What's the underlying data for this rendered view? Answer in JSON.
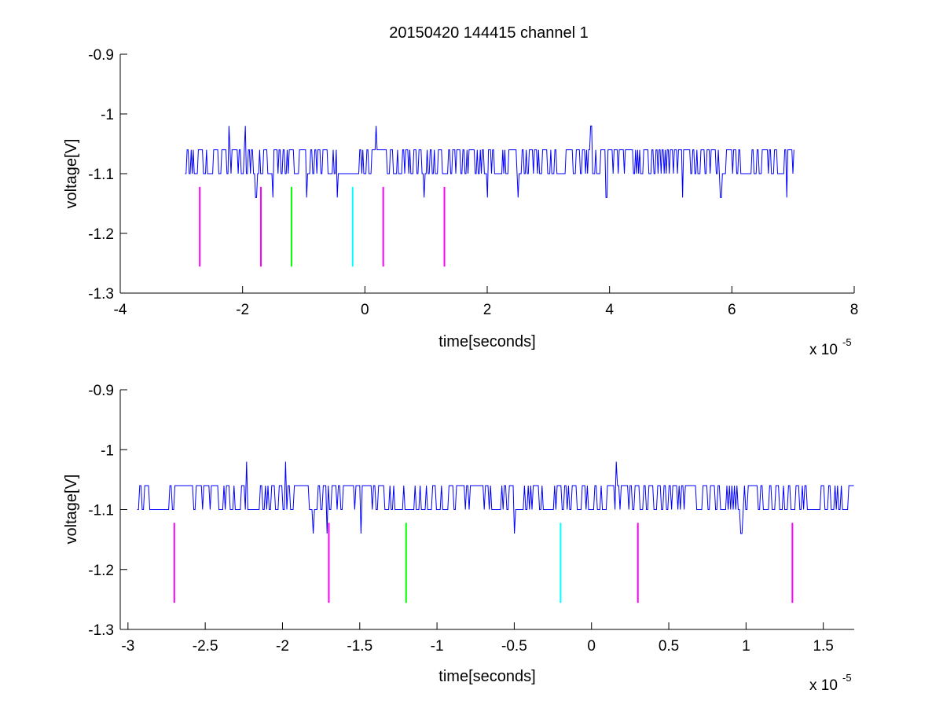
{
  "title": "20150420 144415 channel 1",
  "colors": {
    "signal": "#0000ff",
    "magenta": "#ff00ff",
    "green": "#00ff00",
    "cyan": "#00ffff",
    "axis": "#000000"
  },
  "chart_data": [
    {
      "type": "line",
      "name": "top-subplot",
      "xlabel": "time[seconds]",
      "ylabel": "voltage[V]",
      "x_exponent_base": "x 10",
      "x_exponent_power": "-5",
      "xlim": [
        -4,
        8
      ],
      "ylim": [
        -1.3,
        -0.9
      ],
      "xticks": [
        -4,
        -2,
        0,
        2,
        4,
        6,
        8
      ],
      "xtick_labels": [
        "-4",
        "-2",
        "0",
        "2",
        "4",
        "6",
        "8"
      ],
      "yticks": [
        -1.3,
        -1.2,
        -1.1,
        -1.0,
        -0.9
      ],
      "ytick_labels": [
        "-1.3",
        "-1.2",
        "-1.1",
        "-1",
        "-0.9"
      ],
      "grid": false,
      "signal": {
        "color": "#0000ff",
        "x_start": -2.94,
        "x_end": 7.02,
        "baseline": -1.1,
        "high": -1.06,
        "spikes_up": [
          [
            -2.22,
            -1.02
          ],
          [
            -1.95,
            -1.02
          ],
          [
            0.18,
            -1.02
          ],
          [
            3.7,
            -1.02
          ]
        ],
        "spikes_down": [
          [
            -1.78,
            -1.14
          ],
          [
            -1.5,
            -1.14
          ],
          [
            -0.95,
            -1.14
          ],
          [
            -0.45,
            -1.14
          ],
          [
            0.97,
            -1.14
          ],
          [
            2.0,
            -1.14
          ],
          [
            2.5,
            -1.14
          ],
          [
            3.95,
            -1.14
          ],
          [
            5.2,
            -1.14
          ],
          [
            5.82,
            -1.14
          ],
          [
            6.9,
            -1.14
          ]
        ]
      },
      "markers": [
        {
          "x": -2.7,
          "y1": -1.2556,
          "y2": -1.1222,
          "color": "#ff00ff"
        },
        {
          "x": -1.7,
          "y1": -1.2556,
          "y2": -1.1222,
          "color": "#ff00ff"
        },
        {
          "x": -1.2,
          "y1": -1.2556,
          "y2": -1.1222,
          "color": "#00ff00"
        },
        {
          "x": -0.2,
          "y1": -1.2556,
          "y2": -1.1222,
          "color": "#00ffff"
        },
        {
          "x": 0.3,
          "y1": -1.2556,
          "y2": -1.1222,
          "color": "#ff00ff"
        },
        {
          "x": 1.3,
          "y1": -1.2556,
          "y2": -1.1222,
          "color": "#ff00ff"
        }
      ]
    },
    {
      "type": "line",
      "name": "bottom-subplot",
      "xlabel": "time[seconds]",
      "ylabel": "voltage[V]",
      "x_exponent_base": "x 10",
      "x_exponent_power": "-5",
      "xlim": [
        -3.05,
        1.7
      ],
      "ylim": [
        -1.3,
        -0.9
      ],
      "xticks": [
        -3,
        -2.5,
        -2,
        -1.5,
        -1,
        -0.5,
        0,
        0.5,
        1,
        1.5
      ],
      "xtick_labels": [
        "-3",
        "-2.5",
        "-2",
        "-1.5",
        "-1",
        "-0.5",
        "0",
        "0.5",
        "1",
        "1.5"
      ],
      "yticks": [
        -1.3,
        -1.2,
        -1.1,
        -1.0,
        -0.9
      ],
      "ytick_labels": [
        "-1.3",
        "-1.2",
        "-1.1",
        "-1",
        "-0.9"
      ],
      "grid": false,
      "signal": {
        "color": "#0000ff",
        "x_start": -2.94,
        "x_end": 1.7,
        "baseline": -1.1,
        "high": -1.06,
        "spikes_up": [
          [
            -2.23,
            -1.02
          ],
          [
            -1.98,
            -1.02
          ],
          [
            0.16,
            -1.02
          ]
        ],
        "spikes_down": [
          [
            -1.8,
            -1.14
          ],
          [
            -1.71,
            -1.14
          ],
          [
            -1.49,
            -1.14
          ],
          [
            -0.5,
            -1.14
          ],
          [
            0.97,
            -1.14
          ]
        ]
      },
      "markers": [
        {
          "x": -2.7,
          "y1": -1.2556,
          "y2": -1.1222,
          "color": "#ff00ff"
        },
        {
          "x": -1.7,
          "y1": -1.2556,
          "y2": -1.1222,
          "color": "#ff00ff"
        },
        {
          "x": -1.2,
          "y1": -1.2556,
          "y2": -1.1222,
          "color": "#00ff00"
        },
        {
          "x": -0.2,
          "y1": -1.2556,
          "y2": -1.1222,
          "color": "#00ffff"
        },
        {
          "x": 0.3,
          "y1": -1.2556,
          "y2": -1.1222,
          "color": "#ff00ff"
        },
        {
          "x": 1.3,
          "y1": -1.2556,
          "y2": -1.1222,
          "color": "#ff00ff"
        }
      ]
    }
  ]
}
